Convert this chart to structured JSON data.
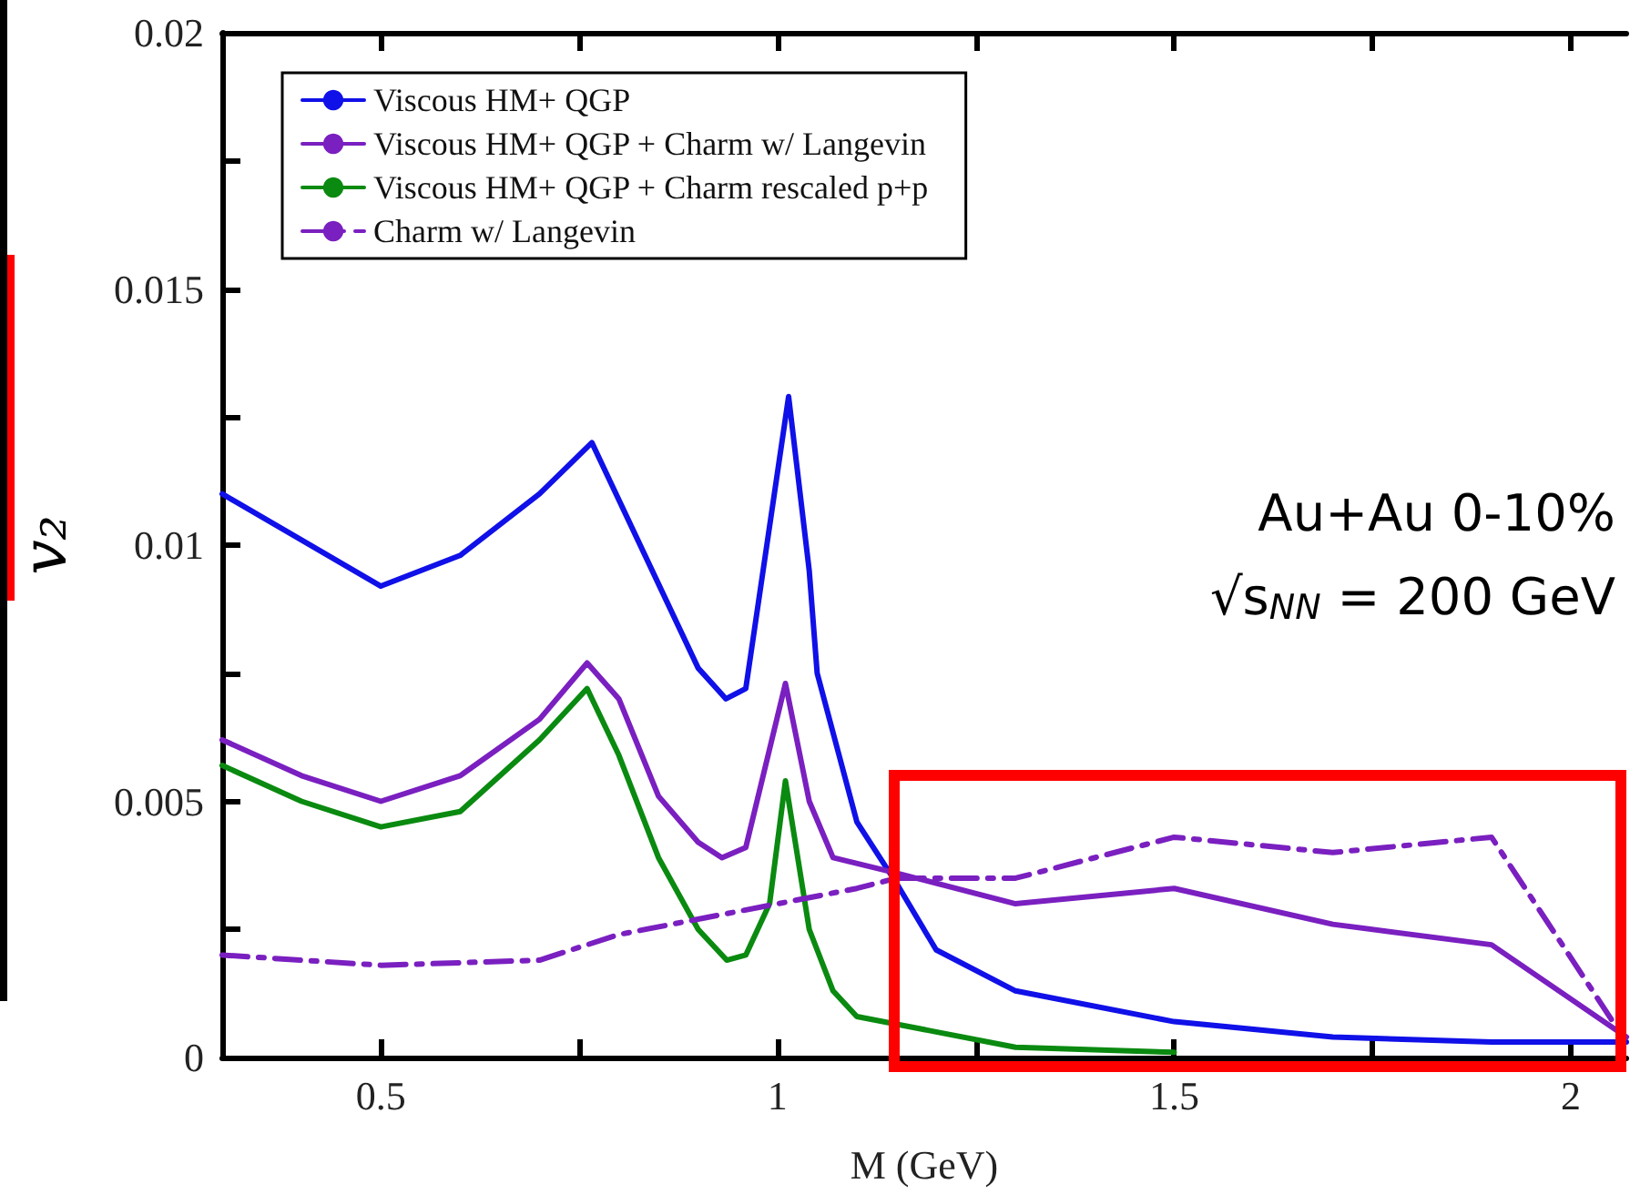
{
  "chart_data": {
    "type": "line",
    "xlabel": "M (GeV)",
    "ylabel": "v₂",
    "xlim": [
      0.3,
      2.07
    ],
    "ylim": [
      0,
      0.02
    ],
    "xticks": [
      0.5,
      {
        "value": 0.75,
        "label": null
      },
      1,
      {
        "value": 1.25,
        "label": null
      },
      1.5,
      {
        "value": 1.75,
        "label": null
      },
      2
    ],
    "yticks": [
      0,
      {
        "value": 0.0025,
        "label": null
      },
      0.005,
      {
        "value": 0.0075,
        "label": null
      },
      0.01,
      {
        "value": 0.0125,
        "label": null
      },
      0.015,
      {
        "value": 0.0175,
        "label": null
      },
      0.02
    ],
    "legend": "top left",
    "grid": false,
    "marker": "none",
    "annotations": [
      "Au+Au 0-10%",
      "√s$_{NN}$ = 200 GeV"
    ],
    "series": [
      {
        "name": "Viscous HM+ QGP",
        "color": "#1010e8",
        "line_style": "solid",
        "x": [
          0.3,
          0.4,
          0.5,
          0.6,
          0.7,
          0.766,
          0.9,
          0.935,
          0.96,
          1.014,
          1.04,
          1.05,
          1.1,
          1.15,
          1.2,
          1.3,
          1.5,
          1.7,
          1.9,
          2.07
        ],
        "values": [
          0.011,
          0.0101,
          0.0092,
          0.0098,
          0.011,
          0.012,
          0.0076,
          0.007,
          0.0072,
          0.0129,
          0.0095,
          0.0075,
          0.0046,
          0.0034,
          0.0021,
          0.0013,
          0.0007,
          0.0004,
          0.0003,
          0.0003
        ]
      },
      {
        "name": "Viscous HM+ QGP + Charm w/ Langevin",
        "color": "#7a1fc0",
        "line_style": "solid",
        "x": [
          0.3,
          0.4,
          0.5,
          0.6,
          0.7,
          0.76,
          0.8,
          0.85,
          0.9,
          0.93,
          0.96,
          1.01,
          1.04,
          1.07,
          1.15,
          1.3,
          1.5,
          1.7,
          1.9,
          2.07
        ],
        "values": [
          0.0062,
          0.0055,
          0.005,
          0.0055,
          0.0066,
          0.0077,
          0.007,
          0.0051,
          0.0042,
          0.0039,
          0.0041,
          0.0073,
          0.005,
          0.0039,
          0.0036,
          0.003,
          0.0033,
          0.0026,
          0.0022,
          0.0004
        ]
      },
      {
        "name": "Viscous HM+ QGP + Charm rescaled p+p",
        "color": "#0a8a10",
        "line_style": "solid",
        "x": [
          0.3,
          0.4,
          0.5,
          0.6,
          0.7,
          0.76,
          0.8,
          0.85,
          0.9,
          0.936,
          0.96,
          0.99,
          1.01,
          1.04,
          1.07,
          1.1,
          1.2,
          1.3,
          1.5
        ],
        "values": [
          0.0057,
          0.005,
          0.0045,
          0.0048,
          0.0062,
          0.0072,
          0.0059,
          0.0039,
          0.0025,
          0.0019,
          0.002,
          0.003,
          0.0054,
          0.0025,
          0.0013,
          0.0008,
          0.0005,
          0.0002,
          0.0001
        ]
      },
      {
        "name": "Charm w/ Langevin",
        "color": "#7a1fc0",
        "line_style": "dashdot",
        "x": [
          0.3,
          0.5,
          0.7,
          0.8,
          0.9,
          1.0,
          1.1,
          1.15,
          1.3,
          1.5,
          1.7,
          1.9,
          2.07
        ],
        "values": [
          0.002,
          0.0018,
          0.0019,
          0.0024,
          0.0027,
          0.003,
          0.0033,
          0.0035,
          0.0035,
          0.0043,
          0.004,
          0.0043,
          0.0003
        ]
      }
    ]
  }
}
